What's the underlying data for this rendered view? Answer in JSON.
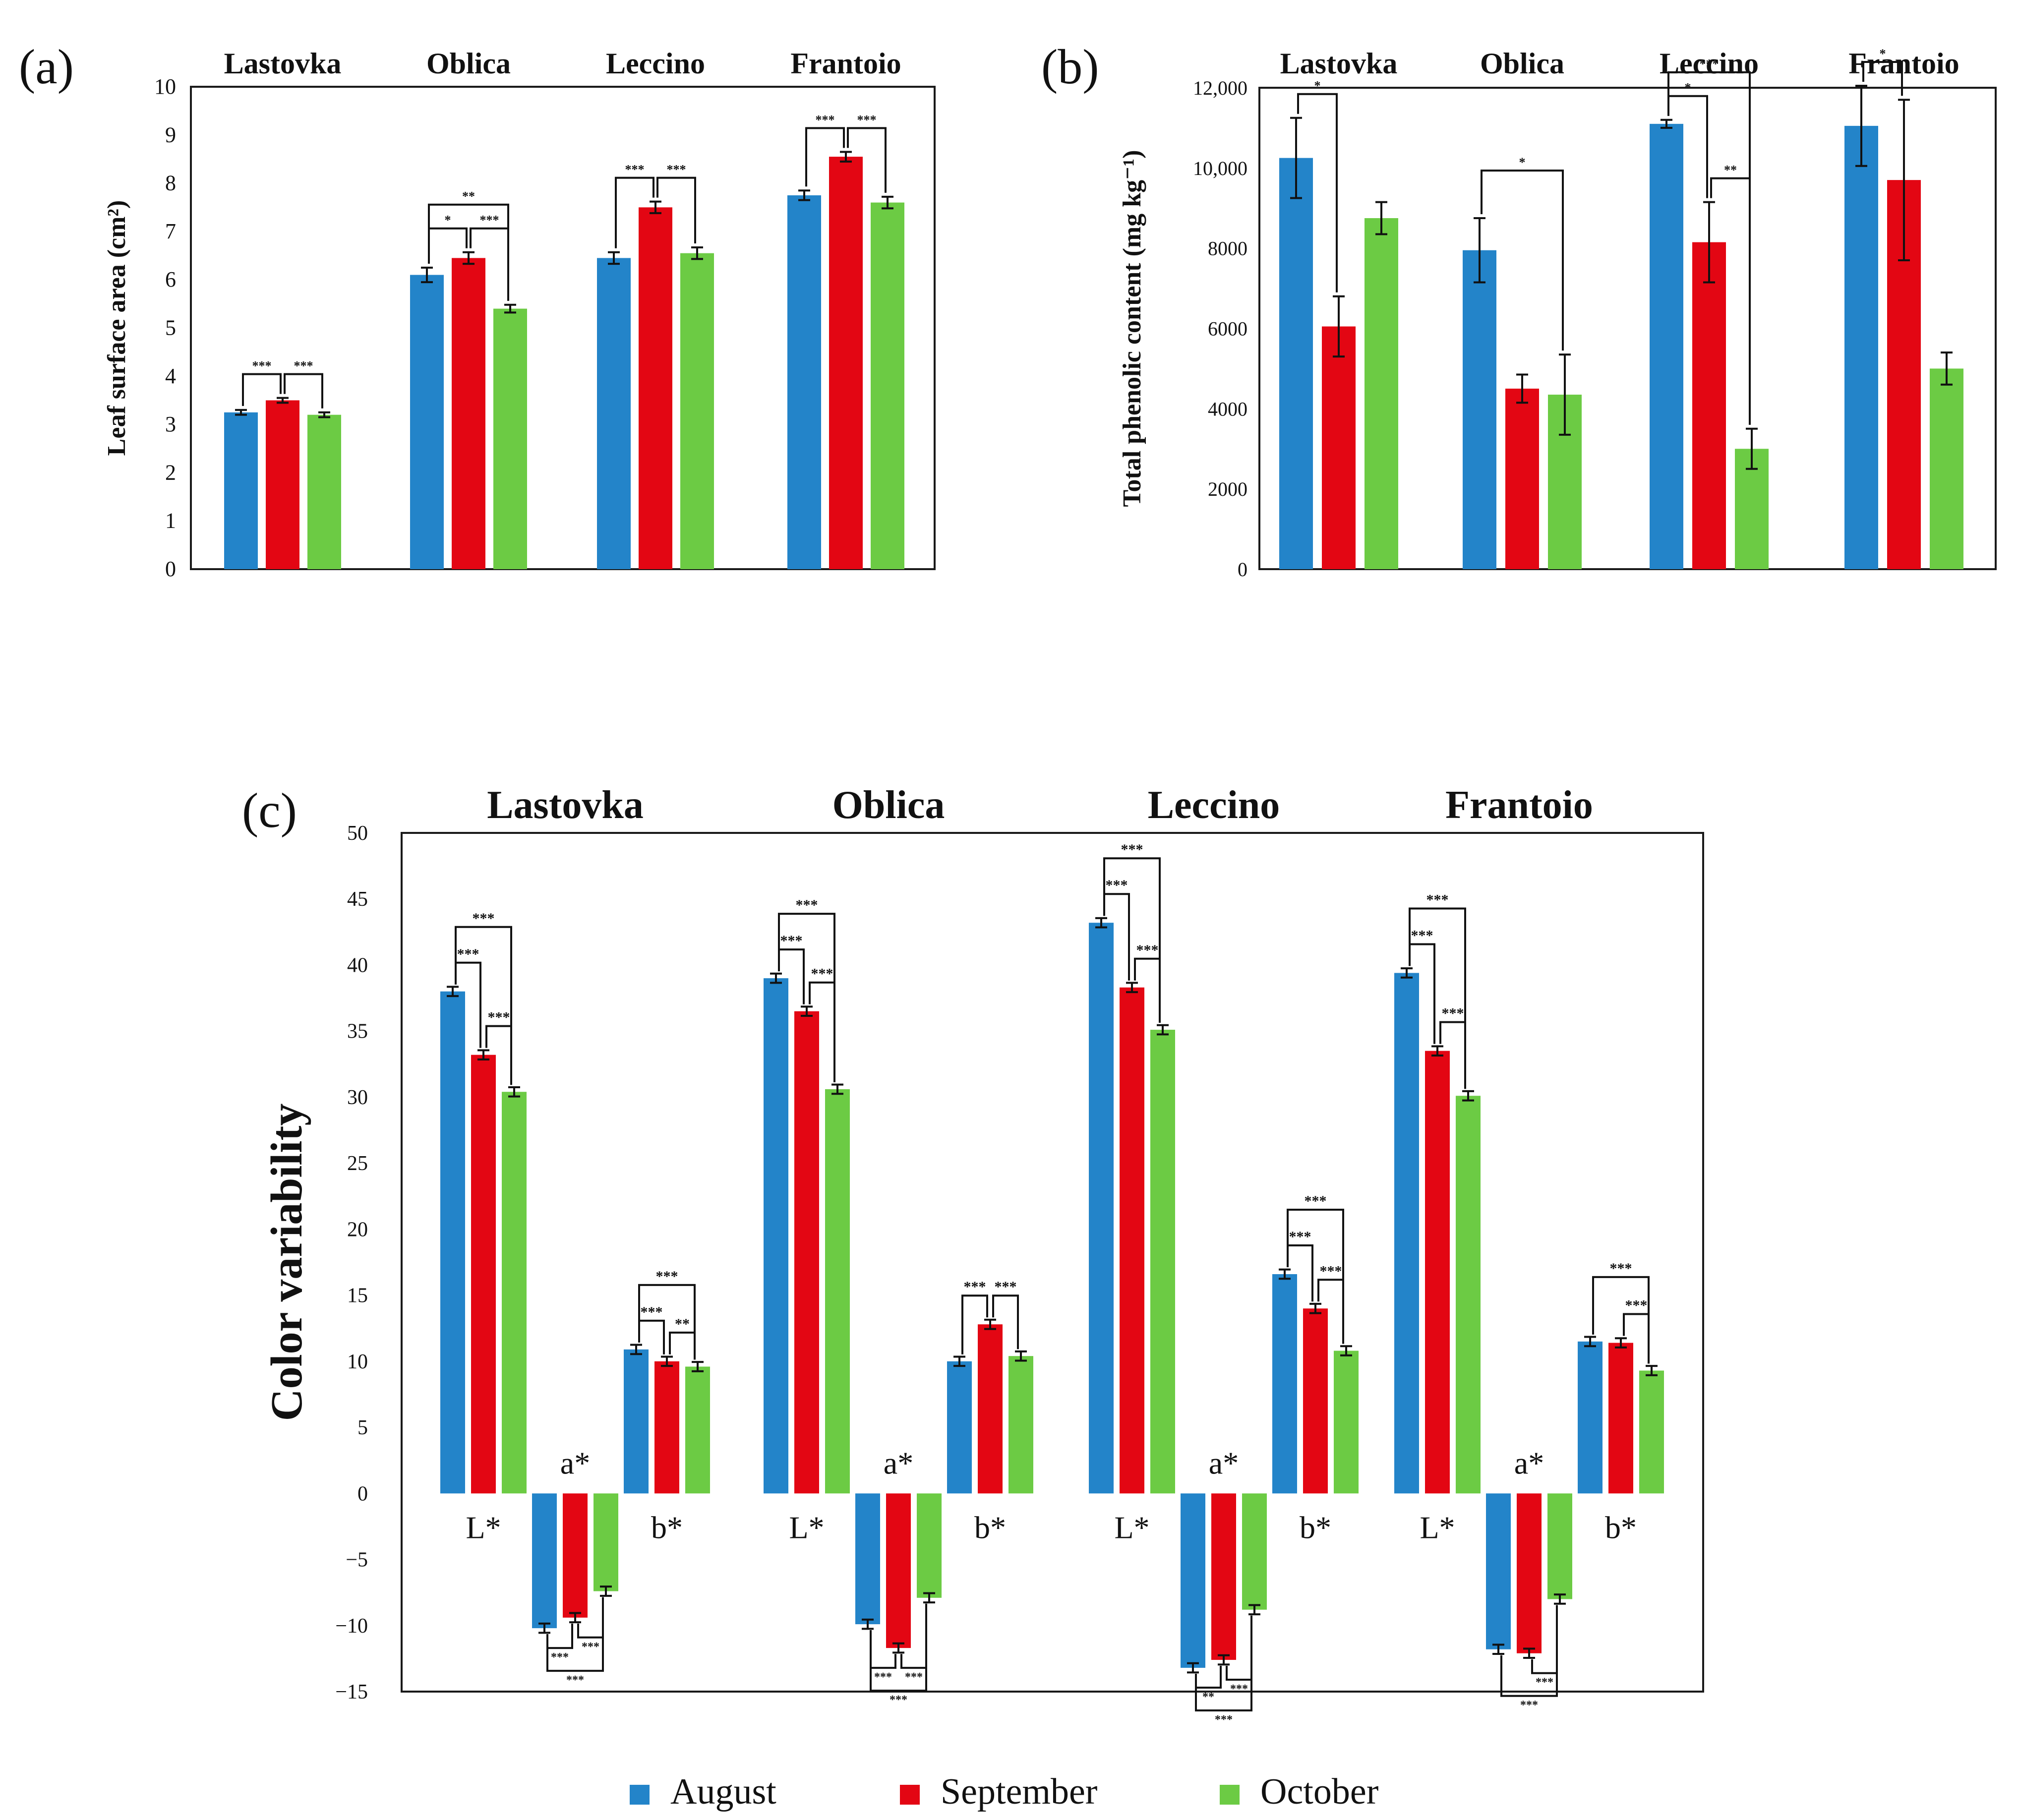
{
  "legend": {
    "items": [
      {
        "label": "August",
        "color": "#2384c9"
      },
      {
        "label": "September",
        "color": "#e30613"
      },
      {
        "label": "October",
        "color": "#6ccb44"
      }
    ]
  },
  "chart_data": [
    {
      "panel_label": "(a)",
      "type": "bar",
      "title": "",
      "xlabel": "",
      "ylabel": "Leaf surface area (cm²)",
      "ylim": [
        0,
        10
      ],
      "yticks": [
        "0",
        "1",
        "2",
        "3",
        "4",
        "5",
        "6",
        "7",
        "8",
        "9",
        "10"
      ],
      "categories": [
        "Lastovka",
        "Oblica",
        "Leccino",
        "Frantoio"
      ],
      "series": [
        {
          "name": "August",
          "values": [
            3.25,
            6.1,
            6.45,
            7.75
          ],
          "errors": [
            0.05,
            0.15,
            0.12,
            0.1
          ]
        },
        {
          "name": "September",
          "values": [
            3.5,
            6.45,
            7.5,
            8.55
          ],
          "errors": [
            0.05,
            0.12,
            0.12,
            0.1
          ]
        },
        {
          "name": "October",
          "values": [
            3.2,
            5.4,
            6.55,
            7.6
          ],
          "errors": [
            0.05,
            0.08,
            0.12,
            0.12
          ]
        }
      ],
      "significance": [
        {
          "category": "Lastovka",
          "pair": [
            0,
            1
          ],
          "label": "***"
        },
        {
          "category": "Lastovka",
          "pair": [
            1,
            2
          ],
          "label": "***"
        },
        {
          "category": "Oblica",
          "pair": [
            0,
            1
          ],
          "label": "*"
        },
        {
          "category": "Oblica",
          "pair": [
            1,
            2
          ],
          "label": "***"
        },
        {
          "category": "Oblica",
          "pair": [
            0,
            2
          ],
          "label": "**"
        },
        {
          "category": "Leccino",
          "pair": [
            0,
            1
          ],
          "label": "***"
        },
        {
          "category": "Leccino",
          "pair": [
            1,
            2
          ],
          "label": "***"
        },
        {
          "category": "Frantoio",
          "pair": [
            0,
            1
          ],
          "label": "***"
        },
        {
          "category": "Frantoio",
          "pair": [
            1,
            2
          ],
          "label": "***"
        }
      ]
    },
    {
      "panel_label": "(b)",
      "type": "bar",
      "title": "",
      "xlabel": "",
      "ylabel": "Total phenolic content (mg kg⁻¹)",
      "ylim": [
        0,
        12000
      ],
      "yticks": [
        "0",
        "2000",
        "4000",
        "6000",
        "8000",
        "10,000",
        "12,000"
      ],
      "categories": [
        "Lastovka",
        "Oblica",
        "Leccino",
        "Frantoio"
      ],
      "series": [
        {
          "name": "August",
          "values": [
            10250,
            7950,
            11100,
            11050
          ],
          "errors": [
            1000,
            800,
            100,
            1000
          ]
        },
        {
          "name": "September",
          "values": [
            6050,
            4500,
            8150,
            9700
          ],
          "errors": [
            750,
            350,
            1000,
            2000
          ]
        },
        {
          "name": "October",
          "values": [
            8750,
            4350,
            3000,
            5000
          ],
          "errors": [
            400,
            1000,
            500,
            400
          ]
        }
      ],
      "significance": [
        {
          "category": "Lastovka",
          "pair": [
            0,
            1
          ],
          "label": "*"
        },
        {
          "category": "Oblica",
          "pair": [
            0,
            2
          ],
          "label": "*"
        },
        {
          "category": "Leccino",
          "pair": [
            0,
            1
          ],
          "label": "*"
        },
        {
          "category": "Leccino",
          "pair": [
            1,
            2
          ],
          "label": "**"
        },
        {
          "category": "Leccino",
          "pair": [
            0,
            2
          ],
          "label": "***"
        },
        {
          "category": "Frantoio",
          "pair": [
            0,
            1
          ],
          "label": "*"
        }
      ]
    },
    {
      "panel_label": "(c)",
      "type": "bar",
      "title": "",
      "xlabel": "",
      "ylabel": "Color variability",
      "ylim": [
        -15,
        50
      ],
      "yticks": [
        "−15",
        "−10",
        "−5",
        "0",
        "5",
        "10",
        "15",
        "20",
        "25",
        "30",
        "35",
        "40",
        "45",
        "50"
      ],
      "categories": [
        "Lastovka",
        "Oblica",
        "Leccino",
        "Frantoio"
      ],
      "components": [
        "L*",
        "a*",
        "b*"
      ],
      "series": [
        {
          "name": "August",
          "L": [
            38.0,
            39.0,
            43.2,
            39.4
          ],
          "a": [
            -10.2,
            -9.9,
            -13.2,
            -11.8
          ],
          "b": [
            10.9,
            10.0,
            16.6,
            11.5
          ]
        },
        {
          "name": "September",
          "L": [
            33.2,
            36.5,
            38.3,
            33.5
          ],
          "a": [
            -9.4,
            -11.7,
            -12.6,
            -12.1
          ],
          "b": [
            10.0,
            12.8,
            14.0,
            11.4
          ]
        },
        {
          "name": "October",
          "L": [
            30.4,
            30.6,
            35.1,
            30.1
          ],
          "a": [
            -7.4,
            -7.9,
            -8.8,
            -8.0
          ],
          "b": [
            9.6,
            10.4,
            10.8,
            9.3
          ]
        }
      ],
      "significance": [
        {
          "category": "Lastovka",
          "component": "L*",
          "pair": [
            0,
            1
          ],
          "label": "***"
        },
        {
          "category": "Lastovka",
          "component": "L*",
          "pair": [
            1,
            2
          ],
          "label": "***"
        },
        {
          "category": "Lastovka",
          "component": "L*",
          "pair": [
            0,
            2
          ],
          "label": "***"
        },
        {
          "category": "Lastovka",
          "component": "a*",
          "pair": [
            0,
            1
          ],
          "label": "***"
        },
        {
          "category": "Lastovka",
          "component": "a*",
          "pair": [
            1,
            2
          ],
          "label": "***"
        },
        {
          "category": "Lastovka",
          "component": "a*",
          "pair": [
            0,
            2
          ],
          "label": "***"
        },
        {
          "category": "Lastovka",
          "component": "b*",
          "pair": [
            0,
            1
          ],
          "label": "***"
        },
        {
          "category": "Lastovka",
          "component": "b*",
          "pair": [
            1,
            2
          ],
          "label": "**"
        },
        {
          "category": "Lastovka",
          "component": "b*",
          "pair": [
            0,
            2
          ],
          "label": "***"
        },
        {
          "category": "Oblica",
          "component": "L*",
          "pair": [
            0,
            1
          ],
          "label": "***"
        },
        {
          "category": "Oblica",
          "component": "L*",
          "pair": [
            1,
            2
          ],
          "label": "***"
        },
        {
          "category": "Oblica",
          "component": "L*",
          "pair": [
            0,
            2
          ],
          "label": "***"
        },
        {
          "category": "Oblica",
          "component": "a*",
          "pair": [
            0,
            1
          ],
          "label": "***"
        },
        {
          "category": "Oblica",
          "component": "a*",
          "pair": [
            1,
            2
          ],
          "label": "***"
        },
        {
          "category": "Oblica",
          "component": "a*",
          "pair": [
            0,
            2
          ],
          "label": "***"
        },
        {
          "category": "Oblica",
          "component": "b*",
          "pair": [
            0,
            1
          ],
          "label": "***"
        },
        {
          "category": "Oblica",
          "component": "b*",
          "pair": [
            1,
            2
          ],
          "label": "***"
        },
        {
          "category": "Leccino",
          "component": "L*",
          "pair": [
            0,
            1
          ],
          "label": "***"
        },
        {
          "category": "Leccino",
          "component": "L*",
          "pair": [
            1,
            2
          ],
          "label": "***"
        },
        {
          "category": "Leccino",
          "component": "L*",
          "pair": [
            0,
            2
          ],
          "label": "***"
        },
        {
          "category": "Leccino",
          "component": "a*",
          "pair": [
            0,
            1
          ],
          "label": "**"
        },
        {
          "category": "Leccino",
          "component": "a*",
          "pair": [
            1,
            2
          ],
          "label": "***"
        },
        {
          "category": "Leccino",
          "component": "a*",
          "pair": [
            0,
            2
          ],
          "label": "***"
        },
        {
          "category": "Leccino",
          "component": "b*",
          "pair": [
            0,
            1
          ],
          "label": "***"
        },
        {
          "category": "Leccino",
          "component": "b*",
          "pair": [
            1,
            2
          ],
          "label": "***"
        },
        {
          "category": "Leccino",
          "component": "b*",
          "pair": [
            0,
            2
          ],
          "label": "***"
        },
        {
          "category": "Frantoio",
          "component": "L*",
          "pair": [
            0,
            1
          ],
          "label": "***"
        },
        {
          "category": "Frantoio",
          "component": "L*",
          "pair": [
            1,
            2
          ],
          "label": "***"
        },
        {
          "category": "Frantoio",
          "component": "L*",
          "pair": [
            0,
            2
          ],
          "label": "***"
        },
        {
          "category": "Frantoio",
          "component": "a*",
          "pair": [
            1,
            2
          ],
          "label": "***"
        },
        {
          "category": "Frantoio",
          "component": "a*",
          "pair": [
            0,
            2
          ],
          "label": "***"
        },
        {
          "category": "Frantoio",
          "component": "b*",
          "pair": [
            1,
            2
          ],
          "label": "***"
        },
        {
          "category": "Frantoio",
          "component": "b*",
          "pair": [
            0,
            2
          ],
          "label": "***"
        }
      ]
    }
  ]
}
